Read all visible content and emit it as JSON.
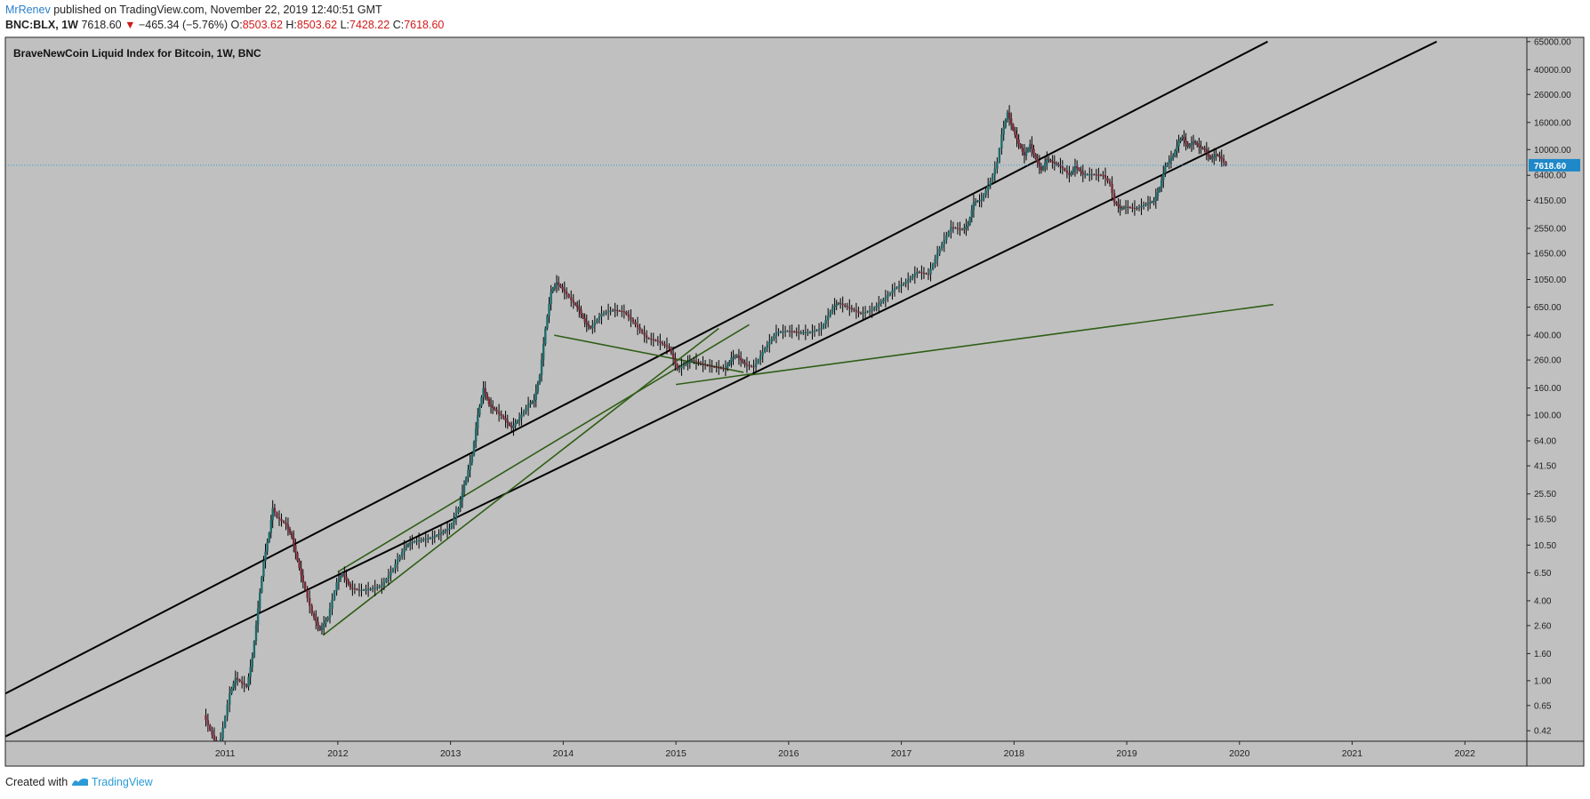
{
  "header": {
    "author": "MrRenev",
    "published_text": "published on TradingView.com, November 22, 2019 12:40:51 GMT",
    "symbol": "BNC:BLX, 1W",
    "last": "7618.60",
    "change_arrow": "▼",
    "change": "−465.34 (−5.76%)",
    "o_label": "O:",
    "o_value": "8503.62",
    "h_label": "H:",
    "h_value": "8503.62",
    "l_label": "L:",
    "l_value": "7428.22",
    "c_label": "C:",
    "c_value": "7618.60"
  },
  "footer": {
    "created_with": "Created with",
    "brand": "TradingView"
  },
  "colors": {
    "plot_bg": "#c0c0c0",
    "frame": "#222222",
    "price_line": "#2a9bd6",
    "price_badge": "#1e88c8",
    "trend_black": "#000000",
    "trend_green": "#2f5e16",
    "candle": "#000000",
    "accent_red": "#d01a1a",
    "author_blue": "#2a7fc9"
  },
  "chart_data": {
    "type": "candlestick",
    "title": "BraveNewCoin Liquid Index for Bitcoin, 1W, BNC",
    "y_scale": "log",
    "y_ticks": [
      "65000.00",
      "40000.00",
      "26000.00",
      "16000.00",
      "10000.00",
      "6400.00",
      "4150.00",
      "2550.00",
      "1650.00",
      "1050.00",
      "650.00",
      "400.00",
      "260.00",
      "160.00",
      "100.00",
      "64.00",
      "41.50",
      "25.50",
      "16.50",
      "10.50",
      "6.50",
      "4.00",
      "2.60",
      "1.60",
      "1.00",
      "0.65",
      "0.42"
    ],
    "x_ticks": [
      "2011",
      "2012",
      "2013",
      "2014",
      "2015",
      "2016",
      "2017",
      "2018",
      "2019",
      "2020",
      "2021",
      "2022"
    ],
    "ylim": [
      0.35,
      70000
    ],
    "xlim": [
      2009.05,
      2022.55
    ],
    "last_price": 7618.6,
    "last_price_label": "7618.60",
    "series": [
      {
        "points": [
          [
            2010.82,
            0.55
          ],
          [
            2010.95,
            0.3
          ],
          [
            2011.05,
            0.8
          ],
          [
            2011.1,
            1.05
          ],
          [
            2011.2,
            0.9
          ],
          [
            2011.25,
            1.5
          ],
          [
            2011.3,
            3.5
          ],
          [
            2011.35,
            8
          ],
          [
            2011.4,
            13
          ],
          [
            2011.43,
            20
          ],
          [
            2011.47,
            17
          ],
          [
            2011.55,
            15
          ],
          [
            2011.6,
            12
          ],
          [
            2011.65,
            8
          ],
          [
            2011.7,
            5.5
          ],
          [
            2011.78,
            3.2
          ],
          [
            2011.85,
            2.4
          ],
          [
            2011.92,
            3
          ],
          [
            2012.0,
            5.5
          ],
          [
            2012.05,
            6.5
          ],
          [
            2012.12,
            5
          ],
          [
            2012.2,
            4.8
          ],
          [
            2012.3,
            4.9
          ],
          [
            2012.4,
            5.2
          ],
          [
            2012.5,
            7
          ],
          [
            2012.6,
            10
          ],
          [
            2012.65,
            11
          ],
          [
            2012.75,
            11.5
          ],
          [
            2012.85,
            12
          ],
          [
            2013.0,
            14
          ],
          [
            2013.08,
            20
          ],
          [
            2013.13,
            30
          ],
          [
            2013.2,
            50
          ],
          [
            2013.25,
            100
          ],
          [
            2013.3,
            160
          ],
          [
            2013.35,
            120
          ],
          [
            2013.4,
            110
          ],
          [
            2013.48,
            95
          ],
          [
            2013.55,
            80
          ],
          [
            2013.62,
            95
          ],
          [
            2013.7,
            120
          ],
          [
            2013.75,
            130
          ],
          [
            2013.8,
            200
          ],
          [
            2013.85,
            450
          ],
          [
            2013.9,
            850
          ],
          [
            2013.95,
            1000
          ],
          [
            2014.02,
            850
          ],
          [
            2014.1,
            700
          ],
          [
            2014.15,
            620
          ],
          [
            2014.2,
            500
          ],
          [
            2014.25,
            450
          ],
          [
            2014.35,
            580
          ],
          [
            2014.45,
            620
          ],
          [
            2014.55,
            600
          ],
          [
            2014.65,
            480
          ],
          [
            2014.75,
            380
          ],
          [
            2014.85,
            360
          ],
          [
            2014.95,
            320
          ],
          [
            2015.02,
            220
          ],
          [
            2015.08,
            240
          ],
          [
            2015.15,
            260
          ],
          [
            2015.25,
            240
          ],
          [
            2015.35,
            230
          ],
          [
            2015.45,
            225
          ],
          [
            2015.5,
            270
          ],
          [
            2015.55,
            280
          ],
          [
            2015.62,
            240
          ],
          [
            2015.7,
            230
          ],
          [
            2015.8,
            320
          ],
          [
            2015.9,
            420
          ],
          [
            2016.0,
            430
          ],
          [
            2016.1,
            420
          ],
          [
            2016.2,
            420
          ],
          [
            2016.3,
            450
          ],
          [
            2016.4,
            650
          ],
          [
            2016.45,
            700
          ],
          [
            2016.55,
            640
          ],
          [
            2016.65,
            580
          ],
          [
            2016.75,
            620
          ],
          [
            2016.85,
            740
          ],
          [
            2016.95,
            900
          ],
          [
            2017.05,
            1000
          ],
          [
            2017.15,
            1200
          ],
          [
            2017.25,
            1150
          ],
          [
            2017.35,
            1800
          ],
          [
            2017.45,
            2600
          ],
          [
            2017.55,
            2500
          ],
          [
            2017.6,
            2700
          ],
          [
            2017.65,
            4000
          ],
          [
            2017.72,
            4200
          ],
          [
            2017.8,
            5800
          ],
          [
            2017.86,
            8000
          ],
          [
            2017.9,
            13000
          ],
          [
            2017.95,
            19000
          ],
          [
            2018.0,
            14000
          ],
          [
            2018.05,
            11000
          ],
          [
            2018.1,
            9000
          ],
          [
            2018.15,
            11000
          ],
          [
            2018.2,
            8500
          ],
          [
            2018.25,
            7000
          ],
          [
            2018.3,
            8500
          ],
          [
            2018.35,
            8000
          ],
          [
            2018.42,
            7500
          ],
          [
            2018.5,
            6400
          ],
          [
            2018.55,
            7500
          ],
          [
            2018.62,
            6500
          ],
          [
            2018.7,
            6500
          ],
          [
            2018.8,
            6400
          ],
          [
            2018.86,
            5500
          ],
          [
            2018.9,
            4000
          ],
          [
            2018.95,
            3600
          ],
          [
            2019.0,
            3700
          ],
          [
            2019.1,
            3600
          ],
          [
            2019.18,
            3900
          ],
          [
            2019.25,
            4100
          ],
          [
            2019.3,
            5200
          ],
          [
            2019.35,
            7500
          ],
          [
            2019.42,
            9000
          ],
          [
            2019.47,
            11500
          ],
          [
            2019.5,
            12500
          ],
          [
            2019.55,
            10500
          ],
          [
            2019.6,
            11500
          ],
          [
            2019.65,
            10500
          ],
          [
            2019.7,
            10000
          ],
          [
            2019.75,
            8500
          ],
          [
            2019.8,
            9200
          ],
          [
            2019.85,
            8500
          ],
          [
            2019.89,
            7618.6
          ]
        ]
      }
    ],
    "trendlines": [
      {
        "color": "black",
        "from": [
          2009.05,
          0.8
        ],
        "to": [
          2020.25,
          65000
        ]
      },
      {
        "color": "black",
        "from": [
          2009.05,
          0.38
        ],
        "to": [
          2021.75,
          65000
        ]
      },
      {
        "color": "green",
        "from": [
          2011.87,
          2.2
        ],
        "to": [
          2015.38,
          450
        ]
      },
      {
        "color": "green",
        "from": [
          2012.0,
          6.6
        ],
        "to": [
          2015.65,
          480
        ]
      },
      {
        "color": "green",
        "from": [
          2013.92,
          400
        ],
        "to": [
          2015.6,
          210
        ]
      },
      {
        "color": "green",
        "from": [
          2015.0,
          170
        ],
        "to": [
          2015.68,
          205
        ]
      },
      {
        "color": "green",
        "from": [
          2015.65,
          200
        ],
        "to": [
          2020.3,
          680
        ]
      }
    ]
  }
}
